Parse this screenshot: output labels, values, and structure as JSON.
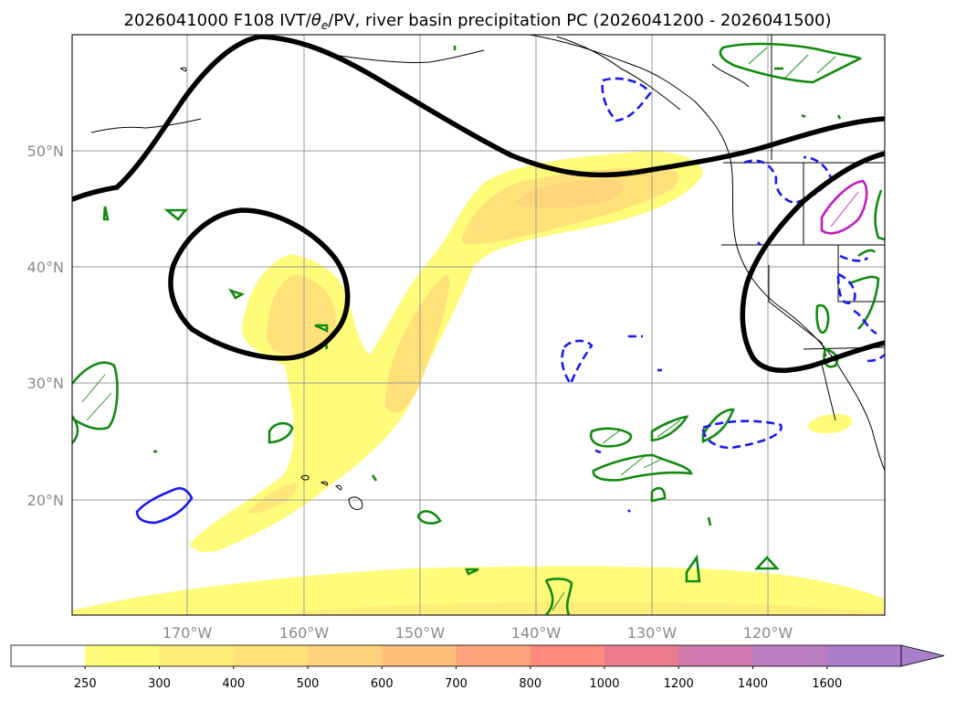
{
  "chart_data": {
    "type": "map",
    "title": "2026041000 F108 IVT/θₑ/PV, river basin precipitation PC (2026041200 - 2026041500)",
    "title_parts": {
      "prefix": "2026041000 F108 IVT/",
      "theta": "θ",
      "theta_sub": "e",
      "suffix": "/PV, river basin precipitation PC (2026041200 - 2026041500)"
    },
    "lon_range": [
      -180,
      -110
    ],
    "lat_range": [
      10,
      60
    ],
    "x_ticks": [
      {
        "value": -170,
        "label": "170°W"
      },
      {
        "value": -160,
        "label": "160°W"
      },
      {
        "value": -150,
        "label": "150°W"
      },
      {
        "value": -140,
        "label": "140°W"
      },
      {
        "value": -130,
        "label": "130°W"
      },
      {
        "value": -120,
        "label": "120°W"
      }
    ],
    "y_ticks": [
      {
        "value": 50,
        "label": "50°N"
      },
      {
        "value": 40,
        "label": "40°N"
      },
      {
        "value": 30,
        "label": "30°N"
      },
      {
        "value": 20,
        "label": "20°N"
      }
    ],
    "grid": true,
    "colorbar": {
      "levels": [
        250,
        300,
        400,
        500,
        600,
        700,
        800,
        1000,
        1200,
        1400,
        1600
      ],
      "labels": [
        "250",
        "300",
        "400",
        "500",
        "600",
        "700",
        "800",
        "1000",
        "1200",
        "1400",
        "1600"
      ],
      "colors": [
        "#ffffff",
        "#fffc7a",
        "#ffee78",
        "#ffe17a",
        "#ffd27c",
        "#ffbf7c",
        "#ffa57e",
        "#ff8a7e",
        "#ea7b8f",
        "#cf79ae",
        "#b97ebe",
        "#a97fcb"
      ],
      "extend": "max"
    },
    "ivt_fill_color": "#fffc7a",
    "ivt_inner_color": "#ffe17a",
    "pv_color": "#000000",
    "green_color": "#118a11",
    "blue_color": "#1a1aee",
    "magenta_color": "#c21cc2"
  }
}
